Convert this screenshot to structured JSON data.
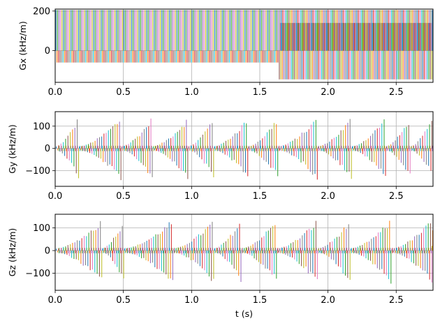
{
  "palette": [
    "#1f77b4",
    "#ff7f0e",
    "#2ca02c",
    "#d62728",
    "#9467bd",
    "#8c564b",
    "#e377c2",
    "#7f7f7f",
    "#bcbd22",
    "#17becf"
  ],
  "chart_data": [
    {
      "type": "line",
      "id": "gx",
      "ylabel": "Gx (kHz/m)",
      "xlabel": "",
      "xlim": [
        0,
        2.77
      ],
      "ylim": [
        -160,
        210
      ],
      "grid": true,
      "xticks": [
        0.0,
        0.5,
        1.0,
        1.5,
        2.0,
        2.5
      ],
      "xtick_labels": [
        "0.0",
        "0.5",
        "1.0",
        "1.5",
        "2.0",
        "2.5"
      ],
      "yticks": [
        0,
        200
      ],
      "ytick_labels": [
        "0",
        "200"
      ],
      "pattern": "bipolar readout lobes",
      "segments": [
        {
          "t_start": 0.0,
          "t_end": 1.63,
          "positive": 205,
          "negative": -60
        },
        {
          "t_start": 1.63,
          "t_end": 2.77,
          "positive": 205,
          "negative": -145,
          "plateau": 140
        }
      ],
      "dense_lines_per_second": 90
    },
    {
      "type": "line",
      "id": "gy",
      "ylabel": "Gy (kHz/m)",
      "xlabel": "",
      "xlim": [
        0,
        2.77
      ],
      "ylim": [
        -170,
        165
      ],
      "grid": true,
      "xticks": [
        0.0,
        0.5,
        1.0,
        1.5,
        2.0,
        2.5
      ],
      "xtick_labels": [
        "0.0",
        "0.5",
        "1.0",
        "1.5",
        "2.0",
        "2.5"
      ],
      "yticks": [
        -100,
        0,
        100
      ],
      "ytick_labels": [
        "−100",
        "0",
        "100"
      ],
      "pattern": "phase-encode ramps",
      "ramp_starts": [
        0.0,
        0.17,
        0.48,
        0.71,
        0.97,
        1.16,
        1.41,
        1.63,
        1.92,
        2.17,
        2.42,
        2.6
      ],
      "ramp_ends": [
        0.17,
        0.48,
        0.71,
        0.97,
        1.16,
        1.41,
        1.63,
        1.92,
        2.17,
        2.42,
        2.6,
        2.77
      ],
      "peak_positive": 145,
      "peak_negative": -150
    },
    {
      "type": "line",
      "id": "gz",
      "ylabel": "Gz (kHz/m)",
      "xlabel": "t (s)",
      "xlim": [
        0,
        2.77
      ],
      "ylim": [
        -175,
        160
      ],
      "grid": true,
      "xticks": [
        0.0,
        0.5,
        1.0,
        1.5,
        2.0,
        2.5
      ],
      "xtick_labels": [
        "0.0",
        "0.5",
        "1.0",
        "1.5",
        "2.0",
        "2.5"
      ],
      "yticks": [
        -100,
        0,
        100
      ],
      "ytick_labels": [
        "−100",
        "0",
        "100"
      ],
      "pattern": "slice-encode ramps",
      "ramp_starts": [
        0.0,
        0.34,
        0.5,
        0.86,
        1.16,
        1.36,
        1.62,
        1.92,
        2.16,
        2.46,
        2.76
      ],
      "ramp_ends": [
        0.34,
        0.5,
        0.86,
        1.16,
        1.36,
        1.62,
        1.92,
        2.16,
        2.46,
        2.76,
        2.77
      ],
      "peak_positive": 140,
      "peak_negative": -155
    }
  ]
}
